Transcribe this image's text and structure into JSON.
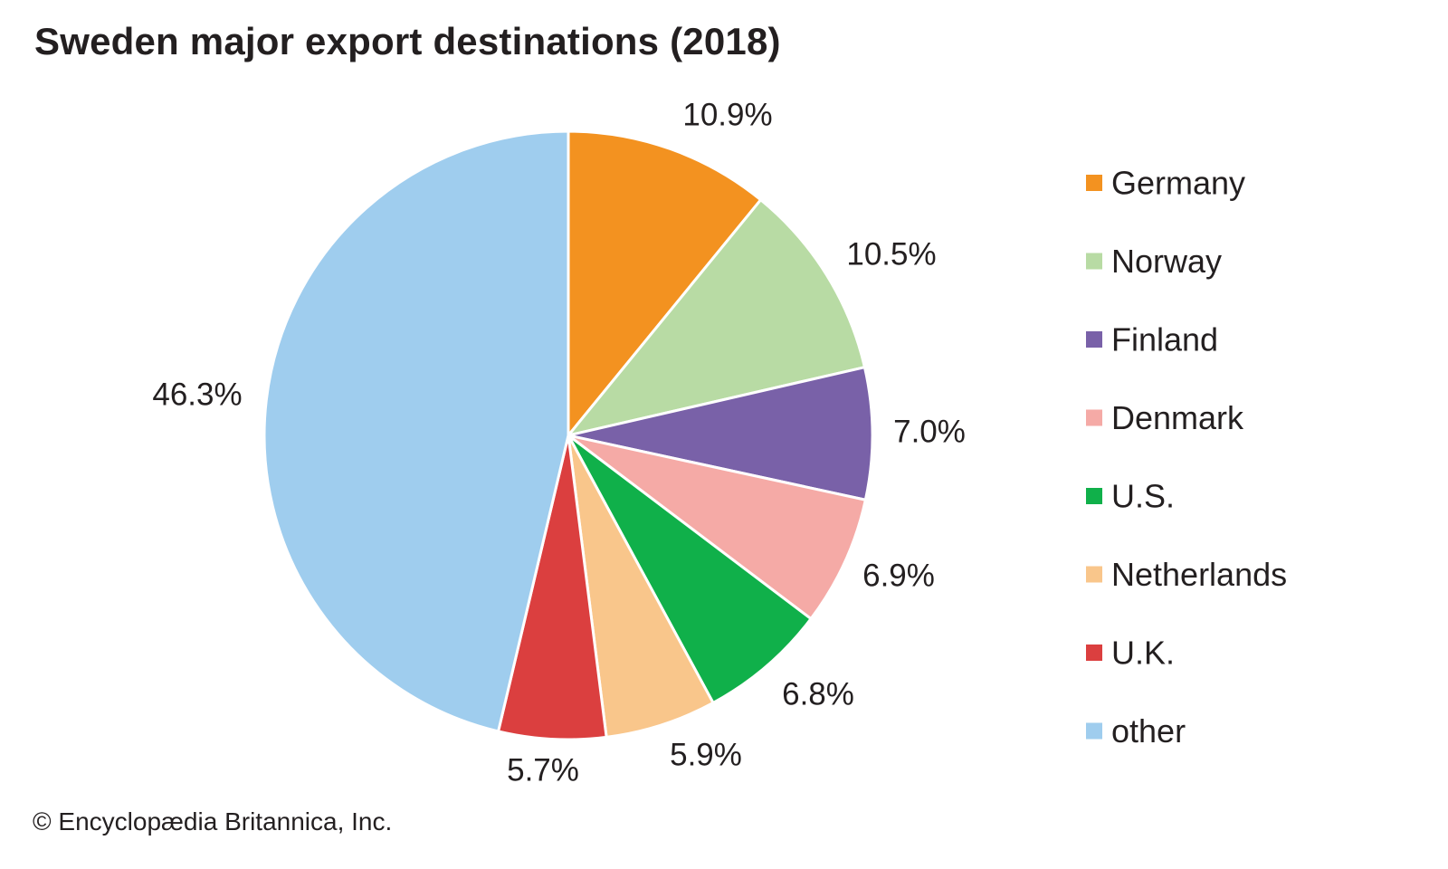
{
  "chart_data": {
    "type": "pie",
    "title": "Sweden major export destinations (2018)",
    "categories": [
      "Germany",
      "Norway",
      "Finland",
      "Denmark",
      "U.S.",
      "Netherlands",
      "U.K.",
      "other"
    ],
    "values": [
      10.9,
      10.5,
      7.0,
      6.9,
      6.8,
      5.9,
      5.7,
      46.3
    ],
    "labels": [
      "10.9%",
      "10.5%",
      "7.0%",
      "6.9%",
      "6.8%",
      "5.9%",
      "5.7%",
      "46.3%"
    ],
    "colors": [
      "#f39220",
      "#b8dba4",
      "#7961a8",
      "#f5aaa6",
      "#10b04a",
      "#f9c68b",
      "#db3f3f",
      "#9fcdee"
    ],
    "start_angle": "12 o'clock, clockwise",
    "legend_position": "right"
  },
  "credit": "© Encyclopædia Britannica, Inc."
}
